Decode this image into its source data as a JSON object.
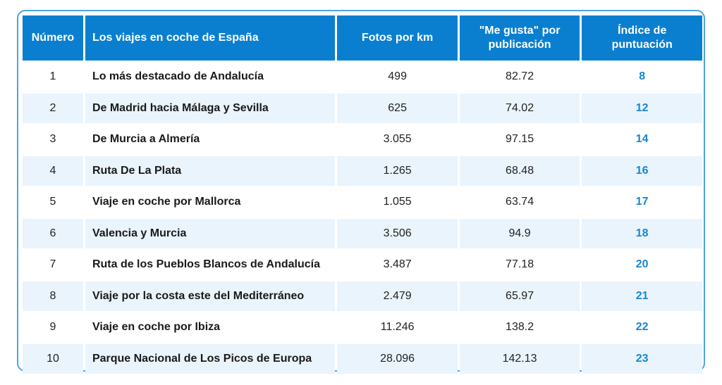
{
  "table": {
    "headers": {
      "number": "Número",
      "trip": "Los viajes en coche de España",
      "photos": "Fotos por km",
      "likes": "\"Me gusta\" por publicación",
      "score": "Índice de puntuación"
    },
    "rows": [
      {
        "number": "1",
        "trip": "Lo más destacado de Andalucía",
        "photos": "499",
        "likes": "82.72",
        "score": "8"
      },
      {
        "number": "2",
        "trip": "De Madrid hacia Málaga y Sevilla",
        "photos": "625",
        "likes": "74.02",
        "score": "12"
      },
      {
        "number": "3",
        "trip": "De Murcia a Almería",
        "photos": "3.055",
        "likes": "97.15",
        "score": "14"
      },
      {
        "number": "4",
        "trip": "Ruta De La Plata",
        "photos": "1.265",
        "likes": "68.48",
        "score": "16"
      },
      {
        "number": "5",
        "trip": "Viaje en coche por Mallorca",
        "photos": "1.055",
        "likes": "63.74",
        "score": "17"
      },
      {
        "number": "6",
        "trip": "Valencia y Murcia",
        "photos": "3.506",
        "likes": "94.9",
        "score": "18"
      },
      {
        "number": "7",
        "trip": "Ruta de los Pueblos Blancos de Andalucía",
        "photos": "3.487",
        "likes": "77.18",
        "score": "20"
      },
      {
        "number": "8",
        "trip": "Viaje por la costa este del Mediterráneo",
        "photos": "2.479",
        "likes": "65.97",
        "score": "21"
      },
      {
        "number": "9",
        "trip": "Viaje en coche por Ibiza",
        "photos": "11.246",
        "likes": "138.2",
        "score": "22"
      },
      {
        "number": "10",
        "trip": "Parque Nacional de Los Picos de Europa",
        "photos": "28.096",
        "likes": "142.13",
        "score": "23"
      }
    ]
  },
  "colors": {
    "header_bg": "#0a7fd0",
    "row_alt_bg": "#eaf4fc",
    "score_text": "#1687d2",
    "frame_border": "#4aa6e0"
  }
}
